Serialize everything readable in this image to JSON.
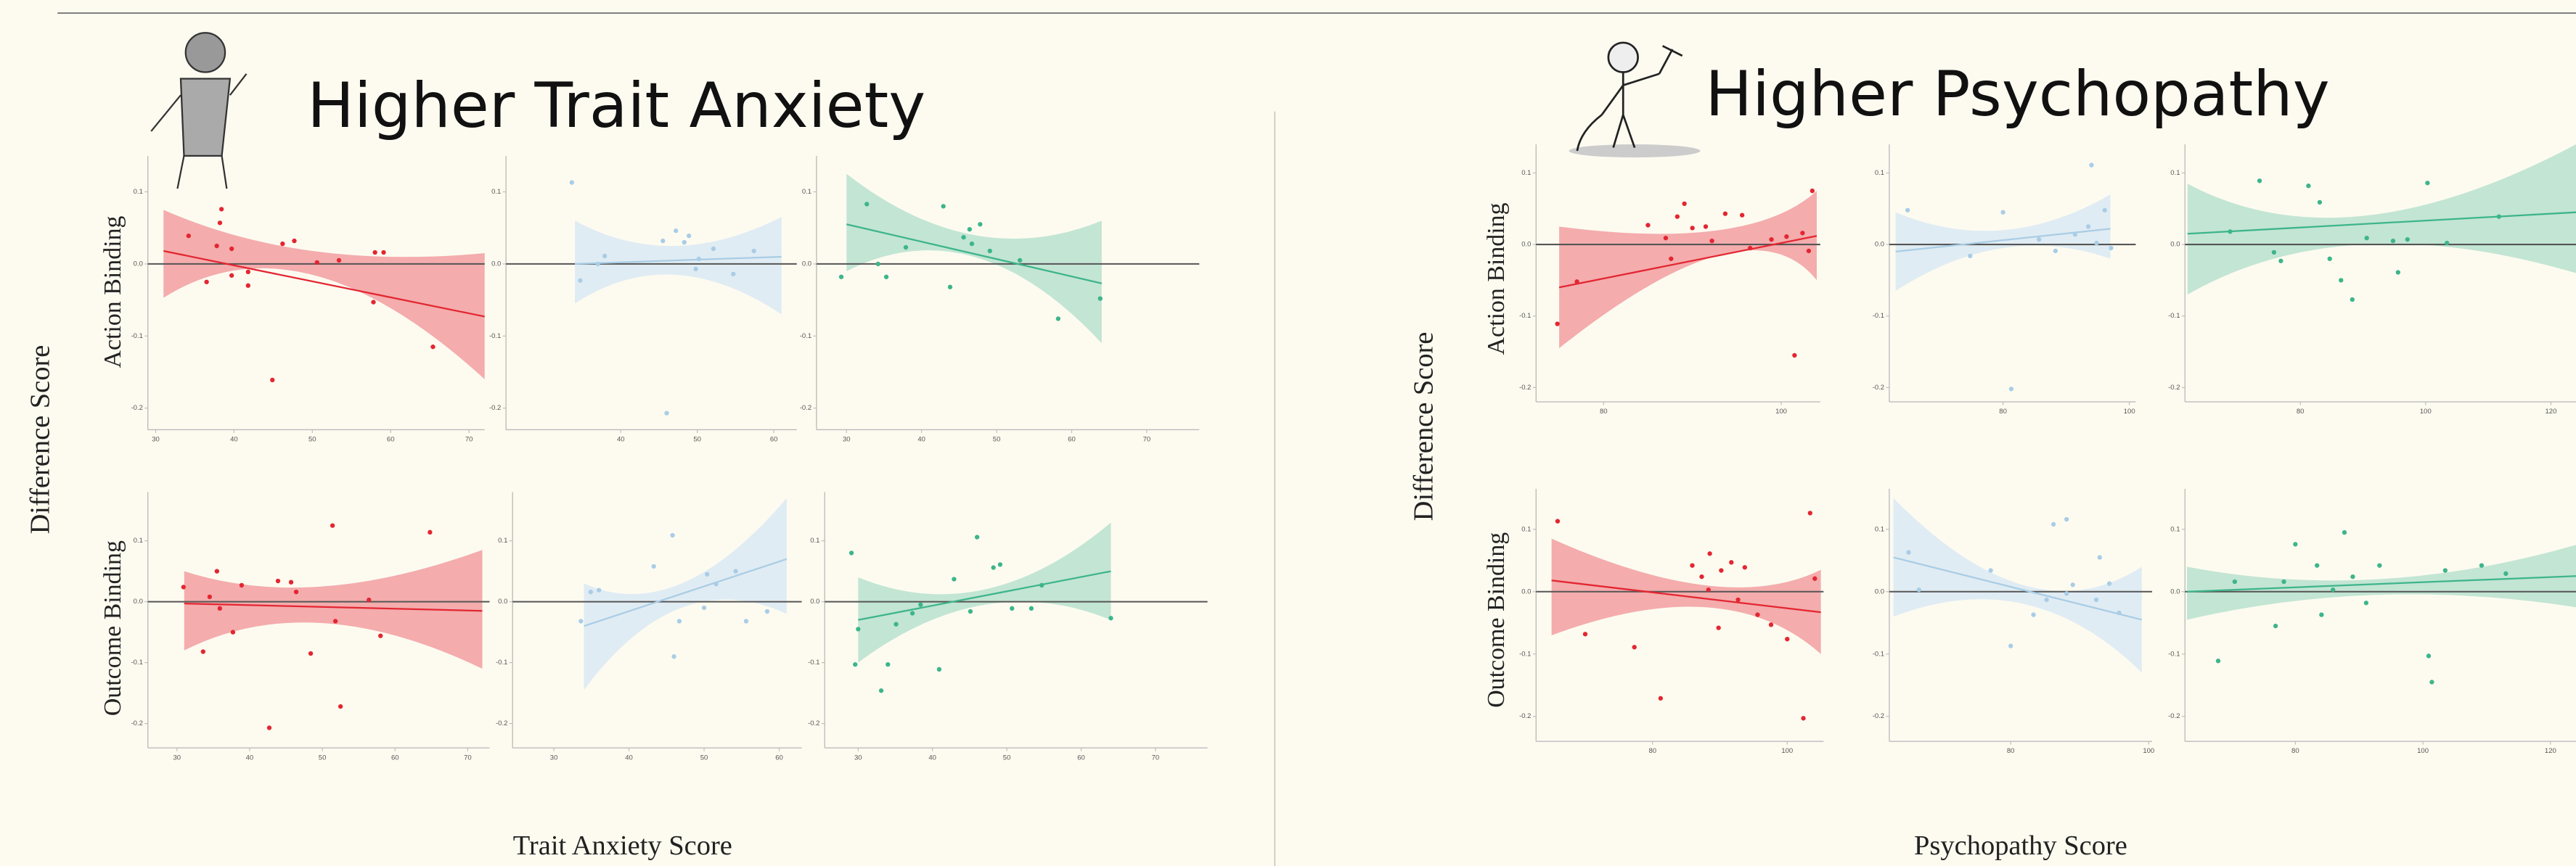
{
  "slide": {
    "left": {
      "title": "Higher Trait Anxiety",
      "y_label": "Difference Score",
      "x_label": "Trait Anxiety Score",
      "row_labels": [
        "Action Binding",
        "Outcome Binding"
      ]
    },
    "right": {
      "title": "Higher Psychopathy",
      "y_label": "Difference Score",
      "x_label": "Psychopathy Score",
      "row_labels": [
        "Action Binding",
        "Outcome Binding"
      ]
    }
  },
  "chart_data": [
    {
      "type": "scatter",
      "color": "#e32631",
      "band_color": "#f08a90",
      "x": [
        34.2,
        36.5,
        37.8,
        38.4,
        38.2,
        39.7,
        41.8,
        44.9,
        46.2,
        47.7,
        50.6,
        53.4,
        58,
        59.1,
        57.8,
        65.4,
        41.8,
        39.7
      ],
      "values": [
        0.039,
        -0.025,
        0.025,
        0.076,
        0.057,
        0.021,
        -0.03,
        -0.161,
        0.028,
        0.032,
        0.002,
        0.005,
        0.016,
        0.016,
        -0.053,
        -0.115,
        -0.011,
        -0.016
      ],
      "fit": {
        "x": [
          31,
          72
        ],
        "values": [
          0.018,
          -0.073
        ]
      },
      "band": {
        "x": [
          31,
          50,
          72
        ],
        "upper": [
          0.075,
          0.018,
          0.015
        ],
        "lower": [
          -0.047,
          -0.015,
          -0.16
        ]
      },
      "hline": 0,
      "xlim": [
        29,
        72
      ],
      "ylim": [
        -0.23,
        0.15
      ],
      "xticks": [
        30,
        40,
        50,
        60,
        70
      ],
      "yticks": [
        0.1,
        {
          "value": 0,
          "label": "0.0"
        },
        -0.1,
        -0.2
      ]
    },
    {
      "type": "scatter",
      "color": "#a9cde6",
      "band_color": "#d3e5f4",
      "x": [
        33.6,
        37,
        34.7,
        37.9,
        45.5,
        47.2,
        48.3,
        48.9,
        49.8,
        50.2,
        54.7,
        52.1,
        46,
        57.4
      ],
      "values": [
        0.113,
        0,
        -0.023,
        0.011,
        0.032,
        0.046,
        0.03,
        0.039,
        -0.007,
        0.007,
        -0.014,
        0.021,
        -0.207,
        0.018
      ],
      "fit": {
        "x": [
          34,
          61
        ],
        "values": [
          0,
          0.01
        ]
      },
      "band": {
        "x": [
          34,
          47,
          61
        ],
        "upper": [
          0.06,
          0.025,
          0.065
        ],
        "lower": [
          -0.055,
          -0.015,
          -0.07
        ]
      },
      "hline": 0,
      "xlim": [
        25,
        63
      ],
      "ylim": [
        -0.23,
        0.15
      ],
      "xticks": [
        40,
        50,
        60
      ],
      "yticks": [
        0.1,
        {
          "value": 0,
          "label": "0.0"
        },
        -0.1,
        -0.2
      ]
    },
    {
      "type": "scatter",
      "color": "#3db58b",
      "band_color": "#a9dcc7",
      "x": [
        29.3,
        32.7,
        34.2,
        35.3,
        37.9,
        42.9,
        43.8,
        45.6,
        46.7,
        47.8,
        49.1,
        53.1,
        58.2,
        63.8,
        46.4
      ],
      "values": [
        -0.018,
        0.083,
        0,
        -0.018,
        0.023,
        0.08,
        -0.032,
        0.037,
        0.028,
        0.055,
        0.018,
        0.005,
        -0.076,
        -0.048,
        0.048
      ],
      "fit": {
        "x": [
          30,
          64
        ],
        "values": [
          0.055,
          -0.027
        ]
      },
      "band": {
        "x": [
          30,
          47,
          64
        ],
        "upper": [
          0.125,
          0.04,
          0.06
        ],
        "lower": [
          -0.01,
          0.01,
          -0.11
        ]
      },
      "hline": 0,
      "xlim": [
        26,
        77
      ],
      "ylim": [
        -0.23,
        0.15
      ],
      "xticks": [
        30,
        40,
        50,
        60,
        70
      ],
      "yticks": [
        0.1,
        {
          "value": 0,
          "label": "0.0"
        },
        -0.1,
        -0.2
      ]
    },
    {
      "type": "scatter",
      "color": "#e32631",
      "band_color": "#f08a90",
      "x": [
        30.9,
        33.6,
        34.5,
        35.5,
        35.9,
        37.7,
        38.9,
        42.7,
        43.9,
        45.7,
        48.4,
        51.4,
        52.5,
        51.8,
        56.4,
        58,
        64.8,
        46.4
      ],
      "values": [
        0.024,
        -0.082,
        0.008,
        0.05,
        -0.011,
        -0.05,
        0.027,
        -0.207,
        0.034,
        0.032,
        -0.085,
        0.125,
        -0.172,
        -0.032,
        0.003,
        -0.056,
        0.114,
        0.016
      ],
      "fit": {
        "x": [
          31,
          72
        ],
        "values": [
          -0.003,
          -0.015
        ]
      },
      "band": {
        "x": [
          31,
          50,
          72
        ],
        "upper": [
          0.05,
          0.025,
          0.085
        ],
        "lower": [
          -0.08,
          -0.035,
          -0.11
        ]
      },
      "hline": 0,
      "xlim": [
        26,
        73
      ],
      "ylim": [
        -0.24,
        0.18
      ],
      "xticks": [
        30,
        40,
        50,
        60,
        70
      ],
      "yticks": [
        0.1,
        {
          "value": 0,
          "label": "0.0"
        },
        -0.1,
        -0.2
      ]
    },
    {
      "type": "scatter",
      "color": "#a9cde6",
      "band_color": "#d3e5f4",
      "x": [
        33.6,
        34.9,
        36,
        43.3,
        45.8,
        46.7,
        46,
        50.4,
        51.6,
        54.2,
        55.6,
        58.4,
        50
      ],
      "values": [
        -0.032,
        0.016,
        0.019,
        0.058,
        0.109,
        -0.032,
        -0.09,
        0.045,
        0.029,
        0.05,
        -0.032,
        -0.016,
        -0.01
      ],
      "fit": {
        "x": [
          34,
          61
        ],
        "values": [
          -0.04,
          0.07
        ]
      },
      "band": {
        "x": [
          34,
          47,
          61
        ],
        "upper": [
          0.03,
          0.03,
          0.17
        ],
        "lower": [
          -0.145,
          -0.01,
          -0.02
        ]
      },
      "hline": 0,
      "xlim": [
        24.5,
        63
      ],
      "ylim": [
        -0.24,
        0.18
      ],
      "xticks": [
        30,
        40,
        50,
        60
      ],
      "yticks": [
        0.1,
        {
          "value": 0,
          "label": "0.0"
        },
        -0.1,
        -0.2
      ]
    },
    {
      "type": "scatter",
      "color": "#3db58b",
      "band_color": "#a9dcc7",
      "x": [
        29.1,
        29.6,
        30,
        33.1,
        34,
        35.1,
        37.3,
        38.4,
        40.9,
        42.9,
        45.1,
        46,
        48.2,
        49.1,
        50.7,
        53.3,
        54.7,
        64
      ],
      "values": [
        0.08,
        -0.103,
        -0.045,
        -0.146,
        -0.103,
        -0.037,
        -0.019,
        -0.005,
        -0.111,
        0.037,
        -0.016,
        0.106,
        0.056,
        0.061,
        -0.011,
        -0.011,
        0.027,
        -0.027
      ],
      "fit": {
        "x": [
          30,
          64
        ],
        "values": [
          -0.03,
          0.05
        ]
      },
      "band": {
        "x": [
          30,
          47,
          64
        ],
        "upper": [
          0.04,
          0.02,
          0.13
        ],
        "lower": [
          -0.1,
          -0.005,
          -0.03
        ]
      },
      "hline": 0,
      "xlim": [
        25.5,
        77
      ],
      "ylim": [
        -0.24,
        0.18
      ],
      "xticks": [
        30,
        40,
        50,
        60,
        70
      ],
      "yticks": [
        0.1,
        {
          "value": 0,
          "label": "0.0"
        },
        -0.1,
        -0.2
      ]
    },
    {
      "type": "scatter",
      "color": "#e32631",
      "band_color": "#f08a90",
      "x": [
        74.8,
        77,
        85,
        87,
        88.3,
        89.1,
        90,
        91.5,
        92.2,
        93.7,
        95.6,
        96.5,
        98.9,
        100.6,
        101.5,
        102.4,
        103.5,
        103.1,
        87.6
      ],
      "values": [
        -0.111,
        -0.052,
        0.027,
        0.009,
        0.039,
        0.057,
        0.023,
        0.025,
        0.005,
        0.043,
        0.041,
        -0.005,
        0.007,
        0.011,
        -0.155,
        0.016,
        0.075,
        -0.009,
        -0.02
      ],
      "fit": {
        "x": [
          75,
          104
        ],
        "values": [
          -0.06,
          0.012
        ]
      },
      "band": {
        "x": [
          75,
          93,
          104
        ],
        "upper": [
          0.025,
          0.02,
          0.075
        ],
        "lower": [
          -0.145,
          -0.015,
          -0.05
        ]
      },
      "hline": 0,
      "xlim": [
        72.4,
        104.4
      ],
      "ylim": [
        -0.22,
        0.14
      ],
      "xticks": [
        80,
        100
      ],
      "yticks": [
        0.1,
        {
          "value": 0,
          "label": "0.0"
        },
        -0.1,
        -0.2
      ]
    },
    {
      "type": "scatter",
      "color": "#a9cde6",
      "band_color": "#d3e5f4",
      "x": [
        64.9,
        74.8,
        80,
        81.3,
        85.7,
        88.3,
        91.4,
        93.5,
        94,
        96.1,
        97.1,
        94.8
      ],
      "values": [
        0.048,
        -0.016,
        0.045,
        -0.202,
        0.007,
        -0.009,
        0.014,
        0.025,
        0.111,
        0.048,
        -0.005,
        0.002
      ],
      "fit": {
        "x": [
          63,
          97
        ],
        "values": [
          -0.01,
          0.022
        ]
      },
      "band": {
        "x": [
          63,
          80,
          97
        ],
        "upper": [
          0.045,
          0.02,
          0.07
        ],
        "lower": [
          -0.065,
          -0.005,
          -0.02
        ]
      },
      "hline": 0,
      "xlim": [
        62,
        101
      ],
      "ylim": [
        -0.22,
        0.14
      ],
      "xticks": [
        80,
        100
      ],
      "yticks": [
        0.1,
        {
          "value": 0,
          "label": "0.0"
        },
        -0.1,
        -0.2
      ]
    },
    {
      "type": "scatter",
      "color": "#3db58b",
      "band_color": "#a9dcc7",
      "x": [
        68.8,
        73.5,
        75.8,
        76.9,
        81.3,
        83.1,
        84.7,
        86.5,
        88.3,
        90.6,
        94.8,
        95.6,
        97.1,
        100.3,
        103.4,
        111.7
      ],
      "values": [
        0.018,
        0.089,
        -0.011,
        -0.023,
        0.082,
        0.059,
        -0.02,
        -0.05,
        -0.077,
        0.009,
        0.005,
        -0.039,
        0.007,
        0.086,
        0.002,
        0.039
      ],
      "fit": {
        "x": [
          62,
          124
        ],
        "values": [
          0.015,
          0.045
        ]
      },
      "band": {
        "x": [
          62,
          90,
          124
        ],
        "upper": [
          0.085,
          0.04,
          0.14
        ],
        "lower": [
          -0.07,
          0,
          -0.04
        ]
      },
      "hline": 0,
      "xlim": [
        61.6,
        124
      ],
      "ylim": [
        -0.22,
        0.14
      ],
      "xticks": [
        80,
        100,
        120
      ],
      "yticks": [
        0.1,
        {
          "value": 0,
          "label": "0.0"
        },
        -0.1,
        -0.2
      ]
    },
    {
      "type": "scatter",
      "color": "#e32631",
      "band_color": "#f08a90",
      "x": [
        65.9,
        70,
        77.3,
        81.2,
        85.9,
        87.3,
        88.5,
        89.8,
        90.2,
        91.7,
        92.7,
        93.7,
        95.6,
        97.6,
        100,
        102.4,
        103.4,
        104.1,
        88.3
      ],
      "values": [
        0.113,
        -0.068,
        -0.089,
        -0.171,
        0.042,
        0.024,
        0.061,
        -0.058,
        0.034,
        0.047,
        -0.013,
        0.039,
        -0.037,
        -0.053,
        -0.076,
        -0.203,
        0.126,
        0.021,
        0.003
      ],
      "fit": {
        "x": [
          65,
          105
        ],
        "values": [
          0.018,
          -0.033
        ]
      },
      "band": {
        "x": [
          65,
          88,
          105
        ],
        "upper": [
          0.085,
          0.01,
          0.035
        ],
        "lower": [
          -0.07,
          -0.025,
          -0.1
        ]
      },
      "hline": 0,
      "xlim": [
        62.7,
        105.4
      ],
      "ylim": [
        -0.24,
        0.165
      ],
      "xticks": [
        80,
        100
      ],
      "yticks": [
        0.1,
        {
          "value": 0,
          "label": "0.0"
        },
        -0.1,
        -0.2
      ]
    },
    {
      "type": "scatter",
      "color": "#a9cde6",
      "band_color": "#d3e5f4",
      "x": [
        65.2,
        66.7,
        77.1,
        80,
        83.3,
        85.2,
        86.2,
        88.1,
        89,
        88.1,
        92.4,
        94.3,
        92.9,
        95.7
      ],
      "values": [
        0.063,
        0.003,
        0.034,
        -0.087,
        -0.037,
        -0.013,
        0.108,
        -0.003,
        0.011,
        0.116,
        -0.013,
        0.013,
        0.055,
        -0.034
      ],
      "fit": {
        "x": [
          63,
          99
        ],
        "values": [
          0.055,
          -0.045
        ]
      },
      "band": {
        "x": [
          63,
          82,
          99
        ],
        "upper": [
          0.15,
          0.01,
          0.04
        ],
        "lower": [
          -0.04,
          -0.02,
          -0.13
        ]
      },
      "hline": 0,
      "xlim": [
        62.4,
        100.5
      ],
      "ylim": [
        -0.24,
        0.165
      ],
      "xticks": [
        80,
        100
      ],
      "yticks": [
        0.1,
        {
          "value": 0,
          "label": "0.0"
        },
        -0.1,
        -0.2
      ]
    },
    {
      "type": "scatter",
      "color": "#3db58b",
      "band_color": "#a9dcc7",
      "x": [
        67.9,
        70.5,
        76.9,
        78.2,
        80,
        83.4,
        84.1,
        85.9,
        87.7,
        89,
        91.1,
        93.2,
        100.9,
        101.4,
        103.5,
        109.2,
        113
      ],
      "values": [
        -0.111,
        0.016,
        -0.055,
        0.016,
        0.076,
        0.042,
        -0.037,
        0.003,
        0.095,
        0.024,
        -0.018,
        0.042,
        -0.103,
        -0.145,
        0.034,
        0.042,
        0.029
      ],
      "fit": {
        "x": [
          63,
          124
        ],
        "values": [
          0,
          0.025
        ]
      },
      "band": {
        "x": [
          63,
          93,
          124
        ],
        "upper": [
          0.04,
          0.02,
          0.075
        ],
        "lower": [
          -0.045,
          -0.005,
          -0.025
        ]
      },
      "hline": 0,
      "xlim": [
        62.7,
        124
      ],
      "ylim": [
        -0.24,
        0.165
      ],
      "xticks": [
        80,
        100,
        120
      ],
      "yticks": [
        0.1,
        {
          "value": 0,
          "label": "0.0"
        },
        -0.1,
        -0.2
      ]
    }
  ]
}
